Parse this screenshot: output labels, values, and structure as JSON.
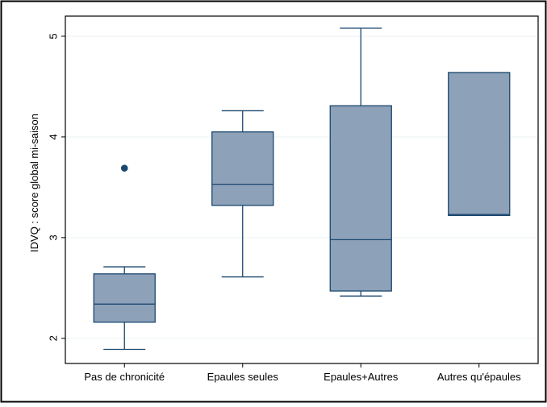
{
  "chart_data": {
    "type": "box",
    "title": "",
    "xlabel": "",
    "ylabel": "IDVQ : score global mi-saison",
    "ylim": [
      1.75,
      5.2
    ],
    "yticks": [
      2,
      3,
      4,
      5
    ],
    "ytick_labels": [
      "2",
      "3",
      "4",
      "5"
    ],
    "grid": true,
    "legend": "none",
    "categories": [
      "Pas de chronicité",
      "Epaules seules",
      "Epaules+Autres",
      "Autres qu'épaules"
    ],
    "boxes": [
      {
        "category": "Pas de chronicité",
        "whisker_low": 1.89,
        "q1": 2.16,
        "median": 2.34,
        "q3": 2.64,
        "whisker_high": 2.71,
        "outliers": [
          3.69
        ]
      },
      {
        "category": "Epaules seules",
        "whisker_low": 2.61,
        "q1": 3.32,
        "median": 3.53,
        "q3": 4.05,
        "whisker_high": 4.26,
        "outliers": []
      },
      {
        "category": "Epaules+Autres",
        "whisker_low": 2.42,
        "q1": 2.47,
        "median": 2.98,
        "q3": 4.31,
        "whisker_high": 5.08,
        "outliers": []
      },
      {
        "category": "Autres qu'épaules",
        "whisker_low": 3.22,
        "q1": 3.22,
        "median": 3.23,
        "q3": 4.64,
        "whisker_high": 4.64,
        "outliers": []
      }
    ],
    "colors": {
      "box_fill": "#8DA1B8",
      "box_stroke": "#1A476F",
      "outlier": "#1A476F",
      "grid": "#EAF2F3",
      "frame": "#000000",
      "outer_border": "#000000"
    }
  }
}
